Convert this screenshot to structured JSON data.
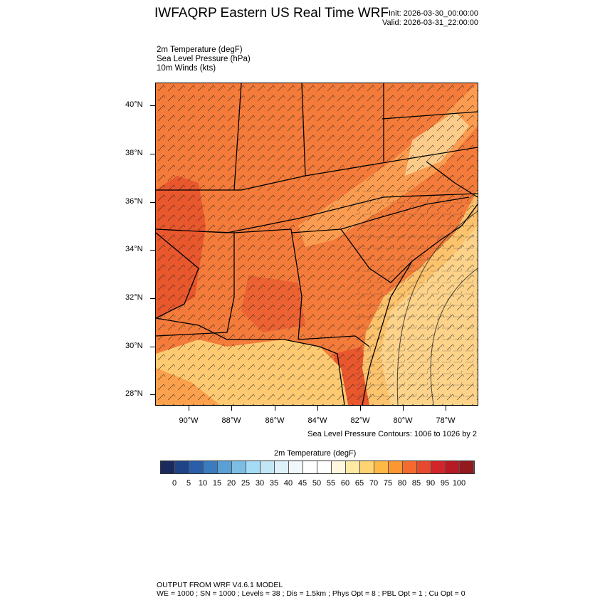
{
  "header": {
    "title": "IWFAQRP Eastern US Real Time WRF",
    "init": "Init: 2026-03-30_00:00:00",
    "valid": "Valid: 2026-03-31_22:00:00"
  },
  "fields": [
    "2m Temperature   (degF)",
    "Sea Level Pressure   (hPa)",
    "10m Winds   (kts)"
  ],
  "map": {
    "lat_labels": [
      "40°N",
      "38°N",
      "36°N",
      "34°N",
      "32°N",
      "30°N",
      "28°N"
    ],
    "lon_labels": [
      "90°W",
      "88°W",
      "86°W",
      "84°W",
      "82°W",
      "80°W",
      "78°W"
    ],
    "colors": {
      "land_warm": "#f47b3a",
      "land_hot": "#e9572d",
      "land_mild": "#fa9a48",
      "ocean": "#fdca72",
      "mountain": "#fdd89a"
    }
  },
  "contour_note": "Sea Level Pressure Contours: 1006 to 1026 by 2",
  "colorbar": {
    "title": "2m Temperature  (degF)",
    "labels": [
      "0",
      "5",
      "10",
      "15",
      "20",
      "25",
      "30",
      "35",
      "40",
      "45",
      "50",
      "55",
      "60",
      "65",
      "70",
      "75",
      "80",
      "85",
      "90",
      "95",
      "100"
    ],
    "colors": [
      "#1b2a5c",
      "#1f4387",
      "#2a5ea9",
      "#3b7bbf",
      "#59a0d5",
      "#7cbde4",
      "#a4dbf5",
      "#c2e6f5",
      "#ddf1f8",
      "#f0f8fc",
      "#ffffff",
      "#ffffff",
      "#fff7de",
      "#feeaa2",
      "#fed472",
      "#feb846",
      "#fc9731",
      "#f46b2d",
      "#e54a2f",
      "#d32429",
      "#b71a25",
      "#92191e"
    ]
  },
  "footer": {
    "line1": "OUTPUT FROM WRF V4.6.1 MODEL",
    "line2": "WE = 1000 ; SN = 1000 ; Levels = 38 ; Dis = 1.5km ; Phys Opt = 8 ; PBL Opt = 1 ; Cu Opt = 0"
  }
}
